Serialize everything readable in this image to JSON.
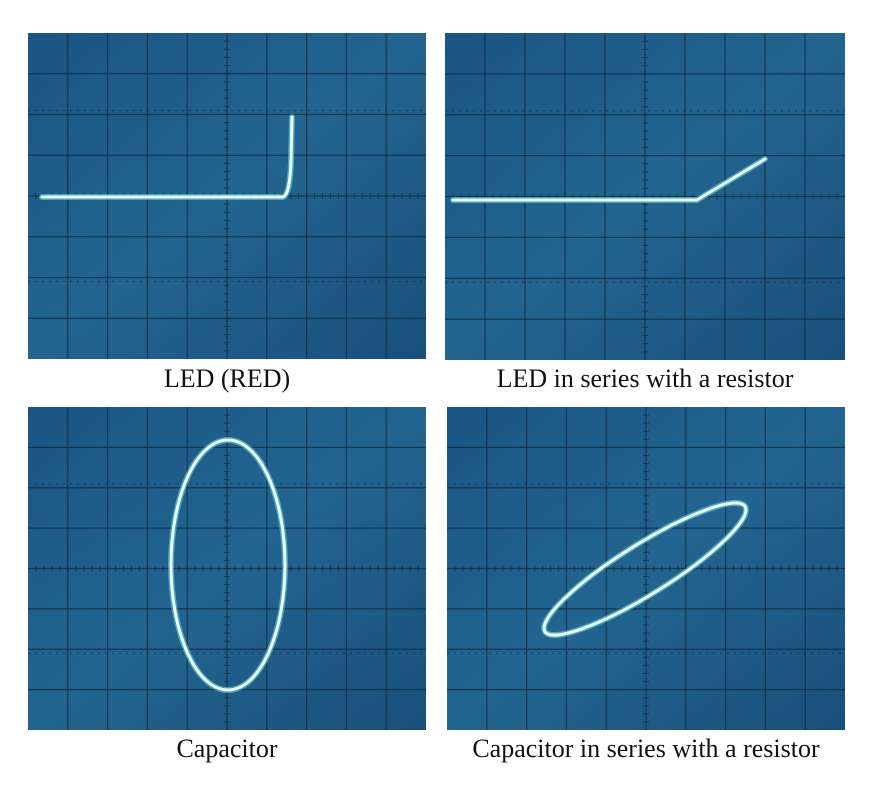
{
  "panels": [
    {
      "caption": "LED (RED)",
      "trace": "led-curve"
    },
    {
      "caption": "LED in series with a resistor",
      "trace": "led-resistor-curve"
    },
    {
      "caption": "Capacitor",
      "trace": "capacitor-ellipse"
    },
    {
      "caption": "Capacitor in series with a resistor",
      "trace": "capacitor-resistor-ellipse"
    }
  ],
  "colors": {
    "screen_bg": "#1e5a86",
    "screen_bg_dark": "#164a70",
    "grid": "#0e2a40",
    "trace": "#e6fffb",
    "trace_glow": "#7ff3e6"
  }
}
